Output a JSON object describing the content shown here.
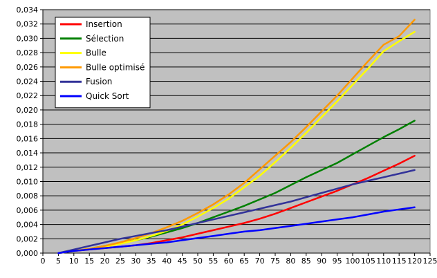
{
  "chart_data": {
    "type": "line",
    "title": "",
    "xlabel": "",
    "ylabel": "",
    "xlim": [
      0,
      125
    ],
    "ylim": [
      0,
      0.034
    ],
    "x_ticks": [
      "0",
      "5",
      "10",
      "15",
      "20",
      "25",
      "30",
      "35",
      "40",
      "45",
      "50",
      "55",
      "60",
      "65",
      "70",
      "75",
      "80",
      "85",
      "90",
      "95",
      "100",
      "105",
      "110",
      "115",
      "120",
      "125"
    ],
    "y_ticks": [
      "0,000",
      "0,002",
      "0,004",
      "0,006",
      "0,008",
      "0,010",
      "0,012",
      "0,014",
      "0,016",
      "0,018",
      "0,020",
      "0,022",
      "0,024",
      "0,026",
      "0,028",
      "0,030",
      "0,032",
      "0,034"
    ],
    "grid": "horizontal",
    "plot_background": "#c0c0c0",
    "legend_position": "top-left",
    "x": [
      5,
      10,
      15,
      20,
      25,
      30,
      35,
      40,
      45,
      50,
      55,
      60,
      65,
      70,
      75,
      80,
      85,
      90,
      95,
      100,
      105,
      110,
      115,
      120
    ],
    "series": [
      {
        "name": "Insertion",
        "color": "#ff0000",
        "values": [
          0.0,
          0.0003,
          0.0005,
          0.0007,
          0.0009,
          0.0011,
          0.0014,
          0.0018,
          0.0022,
          0.0027,
          0.0032,
          0.0037,
          0.0042,
          0.0048,
          0.0055,
          0.0063,
          0.0071,
          0.0079,
          0.0087,
          0.0096,
          0.0105,
          0.0115,
          0.0125,
          0.0136
        ]
      },
      {
        "name": "Sélection",
        "color": "#008000",
        "values": [
          0.0,
          0.0003,
          0.0006,
          0.001,
          0.0014,
          0.0018,
          0.0023,
          0.0029,
          0.0035,
          0.0042,
          0.005,
          0.0058,
          0.0066,
          0.0075,
          0.0084,
          0.0095,
          0.0106,
          0.0116,
          0.0126,
          0.0138,
          0.015,
          0.0162,
          0.0173,
          0.0185
        ]
      },
      {
        "name": "Bulle",
        "color": "#ffff00",
        "values": [
          0.0,
          0.0003,
          0.0006,
          0.0009,
          0.0013,
          0.0018,
          0.0024,
          0.0031,
          0.004,
          0.0051,
          0.0063,
          0.0076,
          0.0092,
          0.0108,
          0.0127,
          0.0147,
          0.0168,
          0.019,
          0.0212,
          0.0235,
          0.0258,
          0.0282,
          0.0296,
          0.0309
        ]
      },
      {
        "name": "Bulle optimisé",
        "color": "#ff9900",
        "values": [
          0.0,
          0.0003,
          0.0006,
          0.001,
          0.0015,
          0.0021,
          0.0028,
          0.0036,
          0.0045,
          0.0056,
          0.0068,
          0.0082,
          0.0098,
          0.0117,
          0.0136,
          0.0155,
          0.0176,
          0.0198,
          0.022,
          0.0244,
          0.0268,
          0.0291,
          0.0303,
          0.0326
        ]
      },
      {
        "name": "Fusion",
        "color": "#333399",
        "values": [
          0.0,
          0.0005,
          0.001,
          0.0015,
          0.002,
          0.0024,
          0.0028,
          0.0032,
          0.0037,
          0.0042,
          0.0047,
          0.0052,
          0.0057,
          0.0062,
          0.0067,
          0.0072,
          0.0078,
          0.0084,
          0.009,
          0.0096,
          0.0101,
          0.0106,
          0.0111,
          0.0116
        ]
      },
      {
        "name": "Quick Sort",
        "color": "#0000ff",
        "values": [
          0.0,
          0.0003,
          0.0005,
          0.0007,
          0.0009,
          0.0011,
          0.0013,
          0.0015,
          0.0018,
          0.0021,
          0.0024,
          0.0027,
          0.003,
          0.0032,
          0.0035,
          0.0038,
          0.0041,
          0.0044,
          0.0047,
          0.005,
          0.0054,
          0.0058,
          0.0061,
          0.0064
        ]
      }
    ]
  }
}
